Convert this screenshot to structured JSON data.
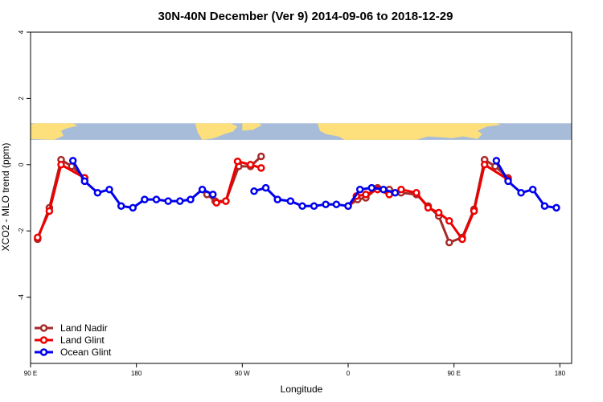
{
  "chart_data": {
    "type": "line",
    "title": "30N-40N December (Ver 9)   2014-09-06 to 2018-12-29",
    "xlabel": "Longitude",
    "ylabel": "XCO2 - MLO trend (ppm)",
    "xlim": [
      90,
      550
    ],
    "ylim": [
      -6,
      4
    ],
    "x_ticks": [
      {
        "value": 90,
        "label": "90 E"
      },
      {
        "value": 180,
        "label": "180"
      },
      {
        "value": 270,
        "label": "90 W"
      },
      {
        "value": 360,
        "label": "0"
      },
      {
        "value": 450,
        "label": "90 E"
      },
      {
        "value": 540,
        "label": "180"
      }
    ],
    "y_ticks": [
      {
        "value": 4,
        "label": "4"
      },
      {
        "value": 2,
        "label": "2"
      },
      {
        "value": 0,
        "label": "0"
      },
      {
        "value": -2,
        "label": "-2"
      },
      {
        "value": -4,
        "label": "-4"
      }
    ],
    "map_strip": {
      "ymin": 0.75,
      "ymax": 1.25,
      "ocean_color": "#a7bcd9",
      "land_color": "#fddf7b"
    },
    "legend": {
      "position": "bottom-left"
    },
    "series": [
      {
        "name": "Land Nadir",
        "color": "#a52a2a",
        "segments": [
          [
            [
              96,
              -2.25
            ],
            [
              106,
              -1.3
            ],
            [
              116,
              0.15
            ],
            [
              125,
              -0.05
            ],
            [
              136,
              -0.4
            ]
          ],
          [
            [
              240,
              -0.9
            ],
            [
              247,
              -1.1
            ],
            [
              256,
              -1.1
            ],
            [
              267,
              -0.05
            ],
            [
              277,
              -0.05
            ],
            [
              286,
              0.25
            ]
          ],
          [
            [
              360,
              -1.25
            ],
            [
              368,
              -1.05
            ],
            [
              375,
              -1.0
            ],
            [
              385,
              -0.7
            ],
            [
              395,
              -0.75
            ],
            [
              405,
              -0.85
            ],
            [
              418,
              -0.9
            ],
            [
              428,
              -1.25
            ],
            [
              437,
              -1.55
            ],
            [
              446,
              -2.35
            ],
            [
              457,
              -2.2
            ],
            [
              467,
              -1.35
            ],
            [
              476,
              0.15
            ],
            [
              485,
              -0.05
            ],
            [
              496,
              -0.4
            ]
          ]
        ]
      },
      {
        "name": "Land Glint",
        "color": "#ee0000",
        "segments": [
          [
            [
              96,
              -2.2
            ],
            [
              106,
              -1.4
            ],
            [
              116,
              0.0
            ],
            [
              136,
              -0.4
            ]
          ],
          [
            [
              248,
              -1.15
            ],
            [
              256,
              -1.1
            ],
            [
              266,
              0.1
            ],
            [
              277,
              0.0
            ],
            [
              286,
              -0.1
            ]
          ],
          [
            [
              360,
              -1.25
            ],
            [
              367,
              -0.95
            ],
            [
              375,
              -0.9
            ],
            [
              385,
              -0.75
            ],
            [
              395,
              -0.9
            ],
            [
              405,
              -0.75
            ],
            [
              418,
              -0.85
            ],
            [
              428,
              -1.3
            ],
            [
              437,
              -1.45
            ],
            [
              446,
              -1.7
            ],
            [
              457,
              -2.25
            ],
            [
              467,
              -1.4
            ],
            [
              476,
              0.0
            ],
            [
              496,
              -0.45
            ]
          ]
        ]
      },
      {
        "name": "Ocean Glint",
        "color": "#0000ee",
        "segments": [
          [
            [
              126,
              0.12
            ],
            [
              136,
              -0.5
            ],
            [
              147,
              -0.85
            ],
            [
              157,
              -0.75
            ],
            [
              167,
              -1.25
            ],
            [
              177,
              -1.3
            ],
            [
              187,
              -1.05
            ],
            [
              197,
              -1.05
            ],
            [
              207,
              -1.1
            ],
            [
              217,
              -1.1
            ],
            [
              226,
              -1.05
            ],
            [
              236,
              -0.75
            ],
            [
              245,
              -0.9
            ]
          ],
          [
            [
              280,
              -0.8
            ],
            [
              290,
              -0.7
            ],
            [
              300,
              -1.05
            ],
            [
              311,
              -1.1
            ],
            [
              321,
              -1.25
            ],
            [
              331,
              -1.25
            ],
            [
              341,
              -1.2
            ],
            [
              350,
              -1.2
            ],
            [
              360,
              -1.25
            ],
            [
              370,
              -0.75
            ],
            [
              380,
              -0.7
            ],
            [
              390,
              -0.75
            ],
            [
              400,
              -0.85
            ]
          ],
          [
            [
              486,
              0.12
            ],
            [
              496,
              -0.5
            ],
            [
              507,
              -0.85
            ],
            [
              517,
              -0.75
            ],
            [
              527,
              -1.25
            ],
            [
              537,
              -1.3
            ]
          ]
        ]
      }
    ]
  }
}
